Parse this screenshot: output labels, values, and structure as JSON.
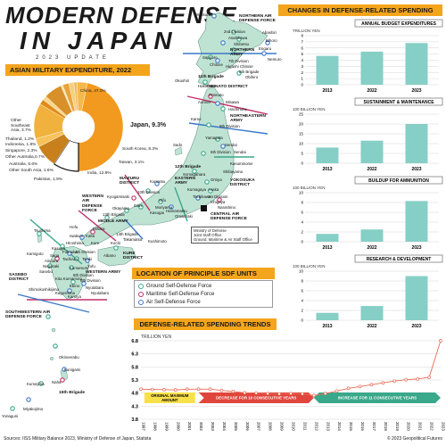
{
  "header": {
    "title_line1": "MODERN DEFENSE",
    "title_line2": "IN JAPAN",
    "subtitle": "2023 UPDATE"
  },
  "asian_expenditure": {
    "banner": "ASIAN MILITARY EXPENDITURE, 2022",
    "center_label": "Japan, 9.3%",
    "labels": {
      "china": "China, 47.0%",
      "other_se_asia": "Other Southeast Asia, 3.7%",
      "thailand": "Thailand, 1.2%",
      "indonesia": "Indonesia, 1.8%",
      "singapore": "Singapore, 2.3%",
      "other_australia": "Other Australia,0.7%",
      "australia": "Australia, 6.6%",
      "other_south_asia": "Other South Asia, 1.6%",
      "pakistan": "Pakistan, 1.9%",
      "india": "India, 12.9%",
      "taiwan": "Taiwan, 3.1%",
      "south_korea": "South Korea, 8.3%"
    }
  },
  "chart_data": [
    {
      "type": "pie",
      "title": "ASIAN MILITARY EXPENDITURE, 2022",
      "slices": [
        {
          "name": "China",
          "value": 47.0,
          "color": "#f29a1f"
        },
        {
          "name": "Japan",
          "value": 9.3,
          "color": "#ffffff"
        },
        {
          "name": "South Korea",
          "value": 8.3,
          "color": "#c7801c"
        },
        {
          "name": "Taiwan",
          "value": 3.1,
          "color": "#f7c25a"
        },
        {
          "name": "India",
          "value": 12.9,
          "color": "#f0b23c"
        },
        {
          "name": "Pakistan",
          "value": 1.9,
          "color": "#e08a18"
        },
        {
          "name": "Other South Asia",
          "value": 1.6,
          "color": "#f9d78c"
        },
        {
          "name": "Australia",
          "value": 6.6,
          "color": "#d8902a"
        },
        {
          "name": "Other Australia",
          "value": 0.7,
          "color": "#fbe2a9"
        },
        {
          "name": "Singapore",
          "value": 2.3,
          "color": "#e9a43b"
        },
        {
          "name": "Indonesia",
          "value": 1.8,
          "color": "#f6cf7a"
        },
        {
          "name": "Thailand",
          "value": 1.2,
          "color": "#eebd5f"
        },
        {
          "name": "Other Southeast Asia",
          "value": 3.7,
          "color": "#f4b94a"
        }
      ]
    },
    {
      "type": "bar",
      "title": "ANNUAL BUDGET EXPENDITURES",
      "ylabel": "TRILLION YEN",
      "categories": [
        "2013",
        "2022",
        "2023"
      ],
      "values": [
        4.7,
        5.4,
        6.8
      ],
      "yticks": [
        "0",
        "1",
        "2",
        "3",
        "4",
        "5",
        "6",
        "7",
        "8"
      ],
      "ylim": [
        0,
        8
      ]
    },
    {
      "type": "bar",
      "title": "SUSTAINMENT & MAINTENANCE",
      "ylabel": "100 BILLION YEN",
      "categories": [
        "2013",
        "2022",
        "2023"
      ],
      "values": [
        8,
        11.5,
        20
      ],
      "yticks": [
        "0",
        "5",
        "10",
        "15",
        "20",
        "25"
      ],
      "ylim": [
        0,
        25
      ]
    },
    {
      "type": "bar",
      "title": "BUILDUP FOR AMMUNITION",
      "ylabel": "100 BILLION YEN",
      "categories": [
        "2013",
        "2022",
        "2023"
      ],
      "values": [
        1.6,
        2.5,
        8.3
      ],
      "yticks": [
        "0",
        "2",
        "4",
        "6",
        "8",
        "10"
      ],
      "ylim": [
        0,
        10
      ]
    },
    {
      "type": "bar",
      "title": "RESEARCH & DEVELOPMENT",
      "ylabel": "100 BILLION YEN",
      "categories": [
        "2013",
        "2022",
        "2023"
      ],
      "values": [
        1.5,
        2.9,
        9
      ],
      "yticks": [
        "0",
        "2",
        "4",
        "6",
        "8",
        "10"
      ],
      "ylim": [
        0,
        10
      ]
    },
    {
      "type": "line",
      "title": "DEFENSE-RELATED SPENDING TRENDS",
      "ylabel": "TRILLION YEN",
      "x": [
        "1997",
        "1998",
        "1999",
        "2000",
        "2001",
        "2002",
        "2003",
        "2004",
        "2005",
        "2006",
        "2007",
        "2008",
        "2009",
        "2010",
        "2011",
        "2012",
        "2013",
        "2014",
        "2015",
        "2016",
        "2017",
        "2018",
        "2019",
        "2020",
        "2021",
        "2022",
        "2023"
      ],
      "values": [
        4.95,
        4.94,
        4.93,
        4.92,
        4.95,
        4.95,
        4.95,
        4.9,
        4.86,
        4.81,
        4.8,
        4.78,
        4.77,
        4.78,
        4.77,
        4.71,
        4.78,
        4.88,
        4.98,
        5.05,
        5.12,
        5.19,
        5.26,
        5.31,
        5.34,
        5.4,
        6.8
      ],
      "yticks": [
        "3.8",
        "4.3",
        "4.8",
        "5.3",
        "5.8",
        "6.3",
        "6.8"
      ],
      "ylim": [
        3.8,
        6.8
      ]
    }
  ],
  "spending": {
    "banner": "CHANGES IN DEFENSE-RELATED SPENDING",
    "chart_years": [
      "2013",
      "2022",
      "2023"
    ]
  },
  "trends": {
    "banner": "DEFENSE-RELATED SPENDING TRENDS",
    "max_label": "ORIGINAL MAXIMUM AMOUNT",
    "decrease_label": "DECREASE FOR 10 CONSECUTIVE YEARS",
    "increase_label": "INCREASE FOR 11 CONSECUTIVE YEARS"
  },
  "sdf": {
    "banner": "LOCATION OF PRINCIPLE SDF UNITS",
    "legend": [
      "Ground Self-Defense Force",
      "Maritime Self-Defense Force",
      "Air Self-Defense Force"
    ],
    "colors": {
      "ground": "#3aa88a",
      "maritime": "#c0306a",
      "air": "#3a78c8"
    }
  },
  "map": {
    "hq_legend": [
      "Ministry of Defense",
      "Joint Staff Office",
      "Ground, Maritime & Air Staff Office"
    ],
    "labels": [
      "Wakkanai",
      "NORTHERN AIR DEFENSE FORCE",
      "2nd Division",
      "Asahikawa",
      "Abashiri",
      "Shibetsu",
      "Bihoro",
      "NORTHERN ARMY",
      "Sapporo",
      "7th Division",
      "Engaru",
      "Nemuro",
      "Chitose",
      "Higashi Chitose",
      "5th Brigade",
      "Obihiro",
      "Okushiri",
      "11th Brigade",
      "Hakodate",
      "OMINATO DISTRICT",
      "Ominato",
      "Aomori",
      "Misawa",
      "Hachinohe",
      "NORTHEASTERN ARMY",
      "9th Division",
      "Kamo",
      "Yamagata",
      "Sendai",
      "6th Division",
      "Kasuminome",
      "Sado",
      "12th Brigade",
      "Somagahara",
      "EASTERN ARMY",
      "Omiya",
      "Asaka",
      "Kumagaya",
      "1st Division",
      "Ichigaya",
      "YOKOSUKA DISTRICT",
      "CENTRAL AIR DEFENSE FORCE",
      "MAIZURU DISTRICT",
      "Komatsu",
      "10th Division",
      "Kyogamisaki",
      "Gifu",
      "Moriyama",
      "Hamamatsu",
      "Omaezaki",
      "Itami",
      "Kasugai",
      "Okayama",
      "MIDDLE ARMY",
      "13th Brigade",
      "Mihara",
      "WESTERN AIR DEFENSE FORCE",
      "Hofu",
      "Kaita",
      "Iwakuni",
      "Kochi",
      "14th Brigade",
      "Kure",
      "KURE DISTRICT",
      "Kushimoto",
      "Takamatsu",
      "Tsushima",
      "Kasuga",
      "Hiroshima",
      "Saga",
      "Tachiarai",
      "4th Division",
      "Fukuoka",
      "Nagasaki",
      "Sasebo",
      "Ainoura",
      "Kumamoto",
      "8th Division",
      "Tsuiki",
      "Yufu",
      "SASEBO DISTRICT",
      "Ebino",
      "Kanoya",
      "8th Division",
      "Shimokoshikijima",
      "Kita Kumamoto",
      "Kagoshima",
      "Nyutabaru",
      "WESTERN ARMY",
      "Kunigami",
      "Okinoerabu",
      "SOUTHWESTERN AIR DEFENSE FORCE",
      "Naha",
      "15th Brigade",
      "Kumejima",
      "Miyakojima",
      "Yonaguni",
      "Kamigoto",
      "Aibano",
      "Shibayama",
      "Tachikawa",
      "Narashino",
      "Sendai",
      "Nyutabaru"
    ]
  },
  "footer": {
    "sources": "Sources: IISS Military Balance 2023, Ministry of Defense of Japan, Statista",
    "copyright": "© 2023 Geopolitical Futures"
  }
}
